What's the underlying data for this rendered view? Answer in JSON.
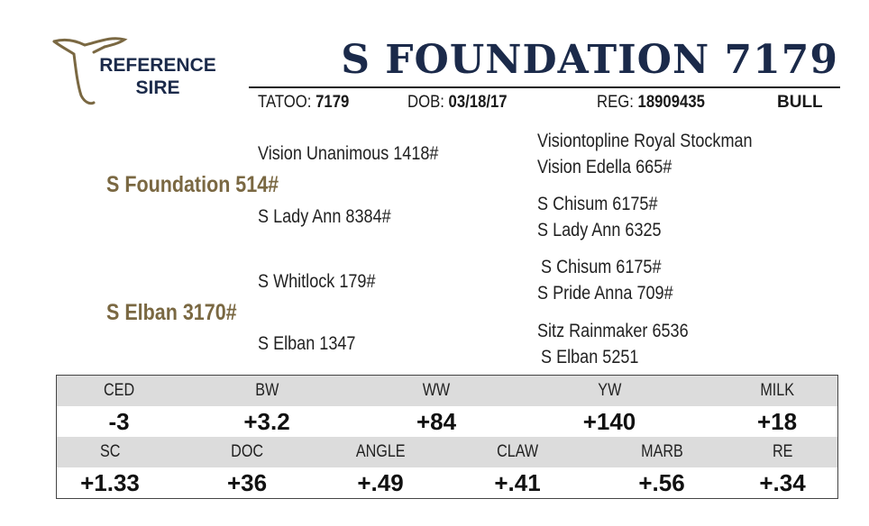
{
  "badge": {
    "line1": "REFERENCE",
    "line2": "SIRE"
  },
  "title": "S FOUNDATION 7179",
  "meta": {
    "tatoo_label": "TATOO:",
    "tatoo_value": "7179",
    "dob_label": "DOB:",
    "dob_value": "03/18/17",
    "reg_label": "REG:",
    "reg_value": "18909435",
    "sex": "BULL"
  },
  "pedigree": {
    "sire": "S Foundation 514#",
    "sire_sire": "Vision Unanimous 1418#",
    "sire_dam": "S Lady Ann 8384#",
    "sss": "Visiontopline Royal Stockman",
    "ssd": "Vision Edella 665#",
    "sds": "S Chisum 6175#",
    "sdd": "S Lady Ann 6325",
    "dam": "S Elban 3170#",
    "dam_sire": "S Whitlock 179#",
    "dam_dam": "S Elban 1347",
    "dss": "S Chisum 6175#",
    "dsd": "S Pride Anna 709#",
    "dds": "Sitz Rainmaker 6536",
    "ddd": "S Elban 5251"
  },
  "epd": {
    "row1": [
      {
        "label": "CED",
        "value": "-3"
      },
      {
        "label": "BW",
        "value": "+3.2"
      },
      {
        "label": "WW",
        "value": "+84"
      },
      {
        "label": "YW",
        "value": "+140"
      },
      {
        "label": "MILK",
        "value": "+18"
      }
    ],
    "row2": [
      {
        "label": "SC",
        "value": "+1.33"
      },
      {
        "label": "DOC",
        "value": "+36"
      },
      {
        "label": "ANGLE",
        "value": "+.49"
      },
      {
        "label": "CLAW",
        "value": "+.41"
      },
      {
        "label": "MARB",
        "value": "+.56"
      },
      {
        "label": "RE",
        "value": "+.34"
      }
    ]
  },
  "colors": {
    "navy": "#1b2a4a",
    "gold": "#7a6842",
    "label_band": "#dcdcdc"
  },
  "icons": {
    "badge": "bull-head-outline-icon"
  }
}
